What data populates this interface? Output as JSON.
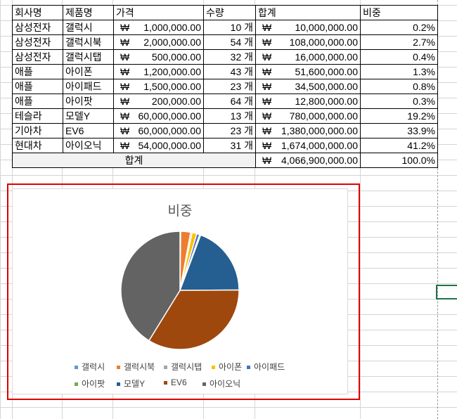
{
  "table": {
    "headers": [
      "회사명",
      "제품명",
      "가격",
      "수량",
      "합계",
      "비중"
    ],
    "currency_symbol": "₩",
    "rows": [
      {
        "company": "삼성전자",
        "product": "갤럭시",
        "price": "1,000,000.00",
        "qty": "10 개",
        "total": "10,000,000.00",
        "share": "0.2%"
      },
      {
        "company": "삼성전자",
        "product": "갤럭시북",
        "price": "2,000,000.00",
        "qty": "54 개",
        "total": "108,000,000.00",
        "share": "2.7%"
      },
      {
        "company": "삼성전자",
        "product": "갤럭시탭",
        "price": "500,000.00",
        "qty": "32 개",
        "total": "16,000,000.00",
        "share": "0.4%"
      },
      {
        "company": "애플",
        "product": "아이폰",
        "price": "1,200,000.00",
        "qty": "43 개",
        "total": "51,600,000.00",
        "share": "1.3%"
      },
      {
        "company": "애플",
        "product": "아이패드",
        "price": "1,500,000.00",
        "qty": "23 개",
        "total": "34,500,000.00",
        "share": "0.8%"
      },
      {
        "company": "애플",
        "product": "아이팟",
        "price": "200,000.00",
        "qty": "64 개",
        "total": "12,800,000.00",
        "share": "0.3%"
      },
      {
        "company": "테슬라",
        "product": "모델Y",
        "price": "60,000,000.00",
        "qty": "13 개",
        "total": "780,000,000.00",
        "share": "19.2%"
      },
      {
        "company": "기아차",
        "product": "EV6",
        "price": "60,000,000.00",
        "qty": "23 개",
        "total": "1,380,000,000.00",
        "share": "33.9%"
      },
      {
        "company": "현대차",
        "product": "아이오닉",
        "price": "54,000,000.00",
        "qty": "31 개",
        "total": "1,674,000,000.00",
        "share": "41.2%"
      }
    ],
    "total_row": {
      "label": "합계",
      "total": "4,066,900,000.00",
      "share": "100.0%"
    }
  },
  "chart_data": {
    "type": "pie",
    "title": "비중",
    "categories": [
      "갤럭시",
      "갤럭시북",
      "갤럭시탭",
      "아이폰",
      "아이패드",
      "아이팟",
      "모델Y",
      "EV6",
      "아이오닉"
    ],
    "values": [
      0.2,
      2.7,
      0.4,
      1.3,
      0.8,
      0.3,
      19.2,
      33.9,
      41.2
    ],
    "colors": [
      "#5b9bd5",
      "#ed7d31",
      "#a5a5a5",
      "#ffc000",
      "#4472c4",
      "#70ad47",
      "#255e91",
      "#9e480e",
      "#636363"
    ],
    "legend_position": "bottom"
  },
  "accent": {
    "selection_border": "#e00000",
    "active_cell": "#217346"
  }
}
